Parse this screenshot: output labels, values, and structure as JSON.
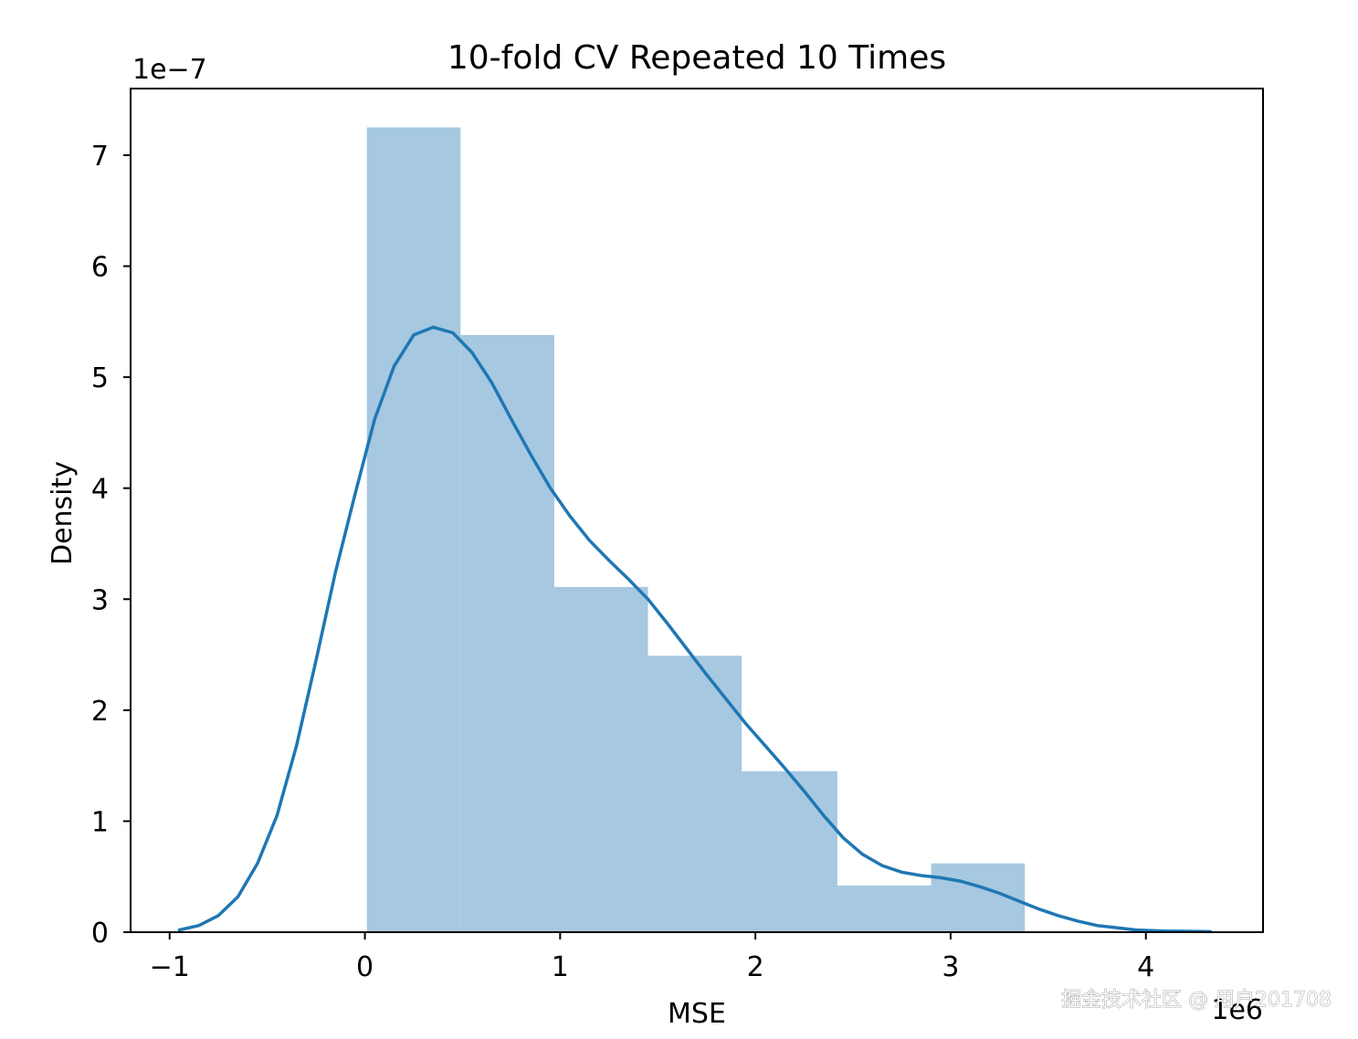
{
  "chart_data": {
    "type": "bar",
    "title": "10-fold CV Repeated 10 Times",
    "xlabel": "MSE",
    "ylabel": "Density",
    "x_offset_label": "1e6",
    "y_offset_label": "1e−7",
    "xlim": [
      -1.2,
      4.6
    ],
    "ylim": [
      0,
      7.6
    ],
    "x_ticks": [
      {
        "value": -1,
        "label": "−1"
      },
      {
        "value": 0,
        "label": "0"
      },
      {
        "value": 1,
        "label": "1"
      },
      {
        "value": 2,
        "label": "2"
      },
      {
        "value": 3,
        "label": "3"
      },
      {
        "value": 4,
        "label": "4"
      }
    ],
    "y_ticks": [
      {
        "value": 0,
        "label": "0"
      },
      {
        "value": 1,
        "label": "1"
      },
      {
        "value": 2,
        "label": "2"
      },
      {
        "value": 3,
        "label": "3"
      },
      {
        "value": 4,
        "label": "4"
      },
      {
        "value": 5,
        "label": "5"
      },
      {
        "value": 6,
        "label": "6"
      },
      {
        "value": 7,
        "label": "7"
      }
    ],
    "histogram": {
      "color": "#a6c8e0",
      "bins": [
        {
          "x0": 0.01,
          "x1": 0.49,
          "density": 7.25
        },
        {
          "x0": 0.49,
          "x1": 0.97,
          "density": 5.38
        },
        {
          "x0": 0.97,
          "x1": 1.45,
          "density": 3.11
        },
        {
          "x0": 1.45,
          "x1": 1.93,
          "density": 2.49
        },
        {
          "x0": 1.93,
          "x1": 2.42,
          "density": 1.45
        },
        {
          "x0": 2.42,
          "x1": 2.9,
          "density": 0.42
        },
        {
          "x0": 2.9,
          "x1": 3.38,
          "density": 0.62
        }
      ]
    },
    "kde": {
      "color": "#1f77b4",
      "points": [
        [
          -0.95,
          0.02
        ],
        [
          -0.85,
          0.06
        ],
        [
          -0.75,
          0.15
        ],
        [
          -0.65,
          0.32
        ],
        [
          -0.55,
          0.62
        ],
        [
          -0.45,
          1.05
        ],
        [
          -0.35,
          1.68
        ],
        [
          -0.25,
          2.45
        ],
        [
          -0.15,
          3.25
        ],
        [
          -0.05,
          3.95
        ],
        [
          0.05,
          4.62
        ],
        [
          0.15,
          5.1
        ],
        [
          0.25,
          5.38
        ],
        [
          0.35,
          5.45
        ],
        [
          0.45,
          5.4
        ],
        [
          0.55,
          5.22
        ],
        [
          0.65,
          4.95
        ],
        [
          0.75,
          4.62
        ],
        [
          0.85,
          4.3
        ],
        [
          0.95,
          4.0
        ],
        [
          1.05,
          3.75
        ],
        [
          1.15,
          3.53
        ],
        [
          1.25,
          3.35
        ],
        [
          1.35,
          3.18
        ],
        [
          1.45,
          3.0
        ],
        [
          1.55,
          2.78
        ],
        [
          1.65,
          2.55
        ],
        [
          1.75,
          2.32
        ],
        [
          1.85,
          2.1
        ],
        [
          1.95,
          1.88
        ],
        [
          2.05,
          1.68
        ],
        [
          2.15,
          1.48
        ],
        [
          2.25,
          1.27
        ],
        [
          2.35,
          1.05
        ],
        [
          2.45,
          0.85
        ],
        [
          2.55,
          0.7
        ],
        [
          2.65,
          0.6
        ],
        [
          2.75,
          0.54
        ],
        [
          2.85,
          0.51
        ],
        [
          2.95,
          0.49
        ],
        [
          3.05,
          0.46
        ],
        [
          3.15,
          0.41
        ],
        [
          3.25,
          0.35
        ],
        [
          3.35,
          0.28
        ],
        [
          3.45,
          0.21
        ],
        [
          3.55,
          0.15
        ],
        [
          3.65,
          0.1
        ],
        [
          3.75,
          0.06
        ],
        [
          3.85,
          0.04
        ],
        [
          3.95,
          0.02
        ],
        [
          4.1,
          0.01
        ],
        [
          4.33,
          0.005
        ]
      ]
    }
  },
  "watermark": "掘金技术社区 @ 用户201708"
}
